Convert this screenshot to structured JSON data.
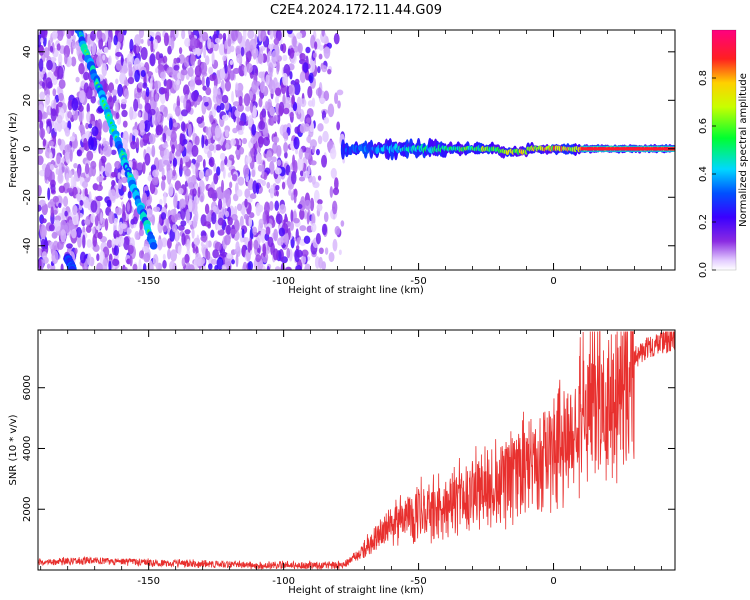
{
  "title": "C2E4.2024.172.11.44.G09",
  "colors": {
    "frame": "#000000",
    "snr_line": "#e8302e",
    "spectrogram_background": "#ffffff"
  },
  "chart_data": [
    {
      "type": "heatmap",
      "name_hint": "spectrogram",
      "xlabel": "Height of straight line (km)",
      "ylabel": "Frequency (Hz)",
      "xlim": [
        -191,
        45
      ],
      "ylim": [
        -50,
        49
      ],
      "x_ticks": [
        -150,
        -100,
        -50,
        0
      ],
      "y_ticks": [
        -40,
        -20,
        0,
        20,
        40
      ],
      "colorscale": "rainbow (violet → blue → cyan → green → yellow → red → magenta)",
      "colorbar": {
        "label": "Normalized spectral amplitude",
        "range": [
          0.0,
          1.0
        ],
        "ticks": [
          0.0,
          0.2,
          0.4,
          0.6,
          0.8
        ]
      },
      "features": [
        {
          "kind": "diagonal_track",
          "from": [
            -176,
            49
          ],
          "to": [
            -148,
            -40
          ],
          "amplitude": 0.4
        },
        {
          "kind": "diagonal_track_tail",
          "from": [
            -180,
            -45
          ],
          "to": [
            -178,
            -50
          ],
          "amplitude": 0.3
        },
        {
          "kind": "noise_field",
          "x_range": [
            -191,
            -76
          ],
          "y_range": [
            -50,
            49
          ],
          "amplitude": 0.15
        },
        {
          "kind": "carrier_line",
          "x_range": [
            -78,
            45
          ],
          "frequency": 0,
          "amplitude_start": 0.3,
          "amplitude_end": 0.9
        }
      ]
    },
    {
      "type": "line",
      "xlabel": "Height of straight line (km)",
      "ylabel": "SNR (10 * v/v)",
      "xlim": [
        -191,
        45
      ],
      "ylim": [
        0,
        7900
      ],
      "x_ticks": [
        -150,
        -100,
        -50,
        0
      ],
      "y_ticks": [
        2000,
        4000,
        6000
      ],
      "series": [
        {
          "description": "SNR envelope (approximate trend values, noisy trace)",
          "x": [
            -191,
            -170,
            -150,
            -130,
            -110,
            -90,
            -78,
            -72,
            -65,
            -60,
            -55,
            -50,
            -45,
            -40,
            -35,
            -30,
            -25,
            -20,
            -15,
            -10,
            -5,
            0,
            5,
            10,
            15,
            20,
            25,
            30,
            35,
            40,
            45
          ],
          "y": [
            250,
            320,
            240,
            200,
            170,
            150,
            160,
            500,
            1100,
            1400,
            1700,
            1900,
            2000,
            2150,
            2300,
            2500,
            2700,
            2900,
            3100,
            3300,
            3600,
            3900,
            4300,
            4800,
            5300,
            5900,
            6500,
            7000,
            7300,
            7500,
            7600
          ]
        }
      ]
    }
  ]
}
